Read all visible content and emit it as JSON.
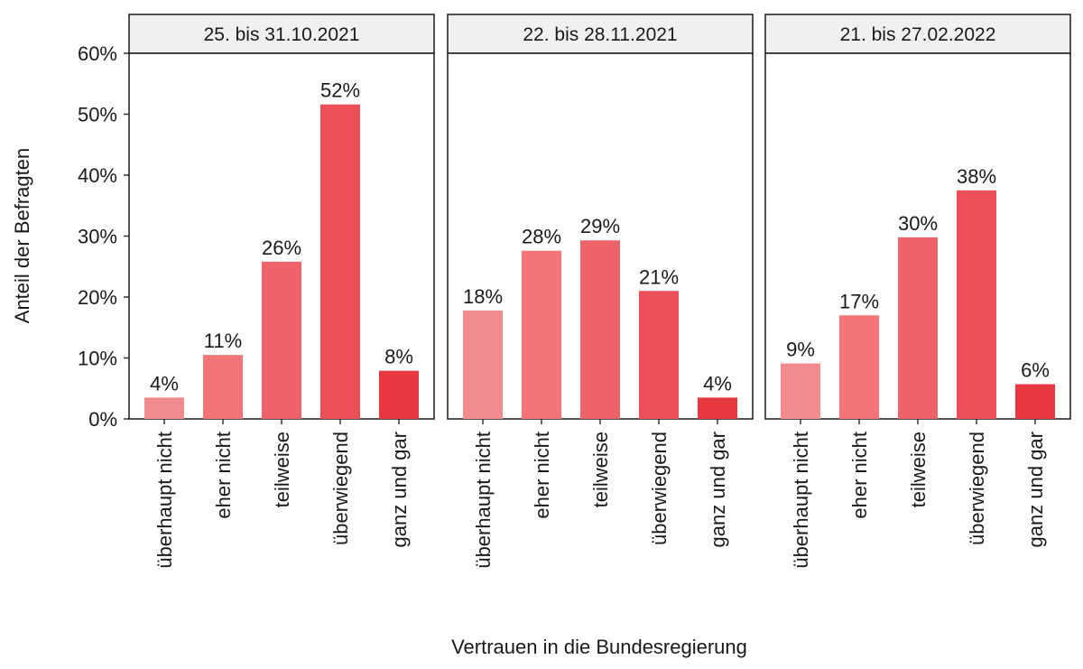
{
  "chart_data": {
    "type": "bar",
    "xlabel": "Vertrauen in die Bundesregierung",
    "ylabel": "Anteil der Befragten",
    "ylim": [
      0,
      60
    ],
    "y_ticks": [
      0,
      10,
      20,
      30,
      40,
      50,
      60
    ],
    "y_tick_labels": [
      "0%",
      "10%",
      "20%",
      "30%",
      "40%",
      "50%",
      "60%"
    ],
    "categories": [
      "überhaupt nicht",
      "eher nicht",
      "teilweise",
      "überwiegend",
      "ganz und gar"
    ],
    "category_colors": [
      "#f28b8e",
      "#f07478",
      "#ee636a",
      "#ec4f57",
      "#e8383f"
    ],
    "grid": false,
    "legend": "none",
    "panels": [
      {
        "title": "25. bis 31.10.2021",
        "values": [
          3.5,
          10.5,
          25.8,
          51.6,
          7.9
        ],
        "labels": [
          "4%",
          "11%",
          "26%",
          "52%",
          "8%"
        ]
      },
      {
        "title": "22. bis 28.11.2021",
        "values": [
          17.8,
          27.6,
          29.3,
          21.0,
          3.5
        ],
        "labels": [
          "18%",
          "28%",
          "29%",
          "21%",
          "4%"
        ]
      },
      {
        "title": "21. bis 27.02.2022",
        "values": [
          9.1,
          17.0,
          29.8,
          37.5,
          5.7
        ],
        "labels": [
          "9%",
          "17%",
          "30%",
          "38%",
          "6%"
        ]
      }
    ]
  }
}
